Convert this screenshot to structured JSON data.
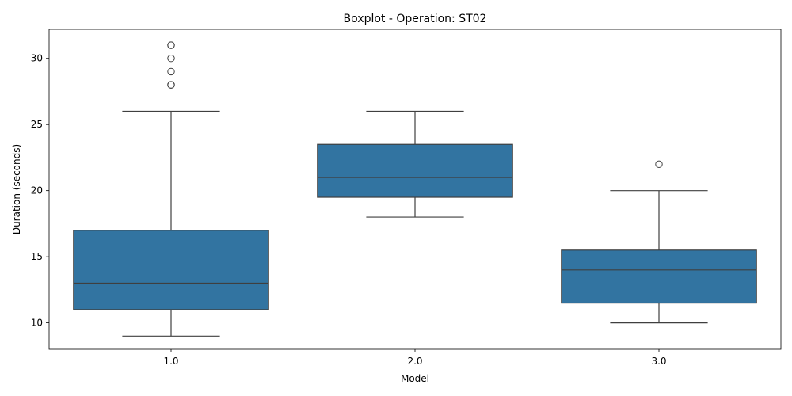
{
  "chart_data": {
    "type": "box",
    "title": "Boxplot - Operation: ST02",
    "xlabel": "Model",
    "ylabel": "Duration (seconds)",
    "categories": [
      "1.0",
      "2.0",
      "3.0"
    ],
    "ylim": [
      8,
      32.2
    ],
    "yticks": [
      10,
      15,
      20,
      25,
      30
    ],
    "grid": false,
    "box_color": "#3274a1",
    "line_color": "#3f3f3f",
    "boxes": [
      {
        "category": "1.0",
        "whisker_low": 9,
        "q1": 11,
        "median": 13,
        "q3": 17,
        "whisker_high": 26,
        "outliers": [
          28,
          28,
          29,
          30,
          31,
          31
        ]
      },
      {
        "category": "2.0",
        "whisker_low": 18,
        "q1": 19.5,
        "median": 21,
        "q3": 23.5,
        "whisker_high": 26,
        "outliers": []
      },
      {
        "category": "3.0",
        "whisker_low": 10,
        "q1": 11.5,
        "median": 14,
        "q3": 15.5,
        "whisker_high": 20,
        "outliers": [
          22
        ]
      }
    ]
  }
}
